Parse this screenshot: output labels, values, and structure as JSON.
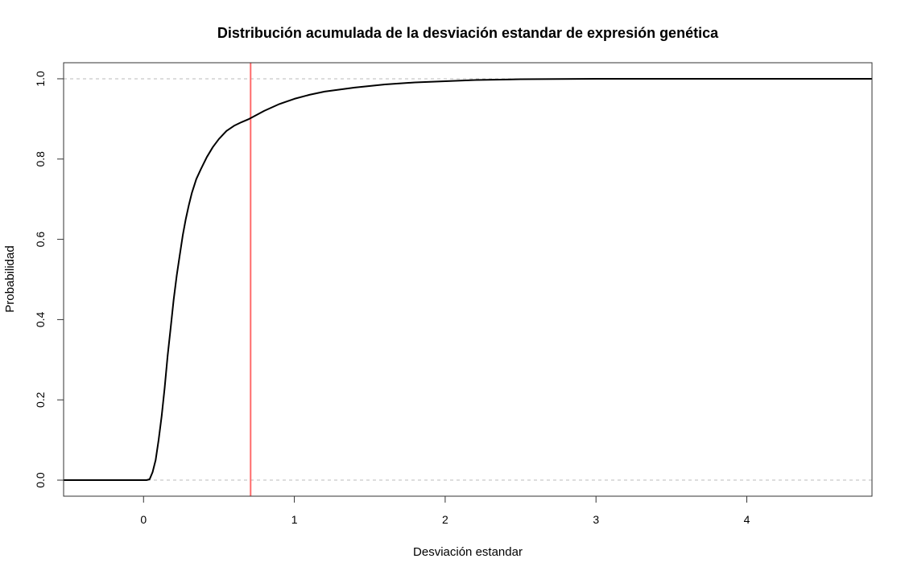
{
  "chart_data": {
    "type": "line",
    "title": "Distribución acumulada de la desviación estandar de expresión genética",
    "xlabel": "Desviación estandar",
    "ylabel": "Probabilidad",
    "xlim": [
      -0.53,
      4.83
    ],
    "ylim": [
      -0.04,
      1.04
    ],
    "x_ticks": [
      0,
      1,
      2,
      3,
      4
    ],
    "x_tick_labels": [
      "0",
      "1",
      "2",
      "3",
      "4"
    ],
    "y_ticks": [
      0.0,
      0.2,
      0.4,
      0.6,
      0.8,
      1.0
    ],
    "y_tick_labels": [
      "0.0",
      "0.2",
      "0.4",
      "0.6",
      "0.8",
      "1.0"
    ],
    "grid": false,
    "reference_lines": [
      {
        "orientation": "horizontal",
        "value": 0.0,
        "color": "#bbbbbb",
        "style": "dashed"
      },
      {
        "orientation": "horizontal",
        "value": 1.0,
        "color": "#bbbbbb",
        "style": "dashed"
      },
      {
        "orientation": "vertical",
        "value": 0.71,
        "color": "#ff6b6b",
        "style": "solid"
      }
    ],
    "series": [
      {
        "color": "#000000",
        "x": [
          -0.53,
          0.0,
          0.02,
          0.04,
          0.06,
          0.08,
          0.1,
          0.12,
          0.14,
          0.16,
          0.18,
          0.2,
          0.22,
          0.24,
          0.26,
          0.28,
          0.3,
          0.32,
          0.35,
          0.38,
          0.42,
          0.46,
          0.5,
          0.55,
          0.6,
          0.65,
          0.7,
          0.75,
          0.8,
          0.9,
          1.0,
          1.1,
          1.2,
          1.4,
          1.6,
          1.8,
          2.0,
          2.2,
          2.5,
          3.0,
          3.5,
          4.0,
          4.83
        ],
        "y": [
          0.0,
          0.0,
          0.0,
          0.002,
          0.02,
          0.05,
          0.1,
          0.16,
          0.23,
          0.31,
          0.38,
          0.45,
          0.51,
          0.56,
          0.61,
          0.65,
          0.685,
          0.715,
          0.75,
          0.775,
          0.805,
          0.83,
          0.85,
          0.87,
          0.883,
          0.892,
          0.9,
          0.91,
          0.92,
          0.937,
          0.95,
          0.96,
          0.968,
          0.978,
          0.986,
          0.991,
          0.994,
          0.997,
          0.999,
          1.0,
          1.0,
          1.0,
          1.0
        ]
      }
    ]
  }
}
